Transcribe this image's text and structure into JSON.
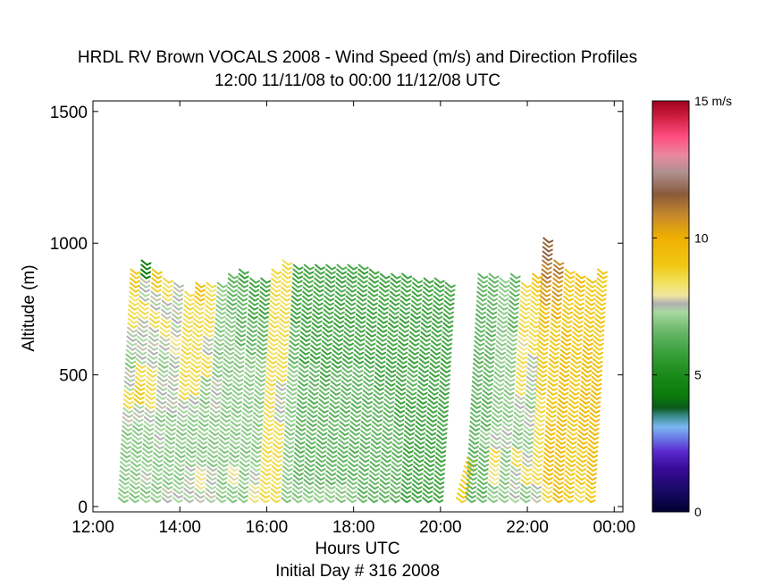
{
  "chart_data": {
    "type": "scatter",
    "title": "HRDL RV Brown VOCALS 2008 - Wind Speed (m/s) and Direction Profiles",
    "subtitle": "12:00 11/11/08 to 00:00 11/12/08  UTC",
    "xlabel": "Hours UTC",
    "xlabel2": "Initial Day # 316  2008",
    "ylabel": "Altitude (m)",
    "xlim": [
      12,
      24.2
    ],
    "ylim": [
      -20,
      1540
    ],
    "x_ticks": [
      12,
      14,
      16,
      18,
      20,
      22,
      24
    ],
    "x_tick_labels": [
      "12:00",
      "14:00",
      "16:00",
      "18:00",
      "20:00",
      "22:00",
      "00:00"
    ],
    "y_ticks": [
      0,
      500,
      1000,
      1500
    ],
    "y_tick_labels": [
      "0",
      "500",
      "1000",
      "1500"
    ],
    "grid": false,
    "profile_spacing_hours": 0.25,
    "barb_spacing_m": 17,
    "profiles": [
      {
        "hour": 12.67,
        "top": 890,
        "speeds": [
          7,
          7,
          7,
          7,
          7.5,
          8.5,
          7.5,
          7,
          7.5,
          8.5,
          8.5,
          9
        ]
      },
      {
        "hour": 12.92,
        "top": 935,
        "speeds": [
          7,
          7,
          7,
          7,
          7.5,
          9,
          8.5,
          7.5,
          7.5,
          8.5,
          7.5,
          4.5
        ]
      },
      {
        "hour": 13.17,
        "top": 890,
        "speeds": [
          7,
          7.5,
          7,
          7,
          7.5,
          8.5,
          8.5,
          7.5,
          7.5,
          8.5,
          7.5,
          9
        ]
      },
      {
        "hour": 13.42,
        "top": 855,
        "speeds": [
          7,
          7,
          7,
          7.5,
          7,
          7.5,
          7.5,
          7,
          7.5,
          8.5,
          7.5,
          8.5
        ]
      },
      {
        "hour": 13.67,
        "top": 850,
        "speeds": [
          7.5,
          7,
          7,
          7,
          7,
          7.5,
          7.5,
          7.5,
          8,
          7.5,
          7.5,
          7.5
        ]
      },
      {
        "hour": 13.92,
        "top": 815,
        "speeds": [
          7.5,
          7,
          7,
          7,
          7,
          7.5,
          8.5,
          8.5,
          8.5,
          8.5,
          8.5,
          8.5
        ]
      },
      {
        "hour": 14.17,
        "top": 850,
        "speeds": [
          7.5,
          7.5,
          7,
          7,
          7,
          7.5,
          8.5,
          8.5,
          8.5,
          8.5,
          8.5,
          9.5
        ]
      },
      {
        "hour": 14.42,
        "top": 850,
        "speeds": [
          7.5,
          8,
          7,
          7,
          7,
          7,
          7,
          8.5,
          7.5,
          8.5,
          8.5,
          8.5
        ]
      },
      {
        "hour": 14.67,
        "top": 840,
        "speeds": [
          7.5,
          7.5,
          7,
          7,
          7,
          7.5,
          7.5,
          7,
          7,
          7,
          7,
          7
        ]
      },
      {
        "hour": 14.92,
        "top": 870,
        "speeds": [
          7,
          7,
          7,
          7,
          7,
          7,
          7,
          7,
          7,
          7,
          6.5,
          6.5
        ]
      },
      {
        "hour": 15.17,
        "top": 900,
        "speeds": [
          7,
          8,
          7,
          7,
          7,
          7,
          7,
          7,
          6.5,
          6.5,
          6.5,
          6
        ]
      },
      {
        "hour": 15.42,
        "top": 860,
        "speeds": [
          7,
          7,
          7,
          7,
          7,
          7,
          7,
          7,
          6.5,
          6.5,
          6,
          6
        ]
      },
      {
        "hour": 15.67,
        "top": 860,
        "speeds": [
          8,
          7.5,
          7,
          7,
          7,
          7,
          7,
          7,
          6.5,
          6.5,
          6,
          6
        ]
      },
      {
        "hour": 15.92,
        "top": 900,
        "speeds": [
          8.5,
          8.5,
          8.5,
          8.5,
          8.5,
          8.5,
          8.5,
          8.5,
          8.5,
          8.5,
          8.5,
          8.5
        ]
      },
      {
        "hour": 16.17,
        "top": 930,
        "speeds": [
          8.5,
          8.5,
          8.5,
          8.5,
          7.5,
          7.5,
          8.5,
          8.5,
          8.5,
          8.5,
          8.5,
          8.5
        ]
      },
      {
        "hour": 16.42,
        "top": 920,
        "speeds": [
          7,
          7,
          7,
          7,
          7,
          7,
          7,
          6.5,
          6.5,
          6,
          6,
          6
        ]
      },
      {
        "hour": 16.67,
        "top": 920,
        "speeds": [
          7,
          6.5,
          6.5,
          6.5,
          6.5,
          6.5,
          6.5,
          6,
          6,
          6,
          6,
          6
        ]
      },
      {
        "hour": 16.92,
        "top": 915,
        "speeds": [
          7,
          6.5,
          6.5,
          6.5,
          6.5,
          6.5,
          6.5,
          6,
          6,
          6,
          6,
          6
        ]
      },
      {
        "hour": 17.17,
        "top": 910,
        "speeds": [
          7,
          6.5,
          6.5,
          6.5,
          6.5,
          6.5,
          6,
          6,
          6,
          6,
          6,
          6
        ]
      },
      {
        "hour": 17.42,
        "top": 905,
        "speeds": [
          7,
          6.5,
          6.5,
          6.5,
          6.5,
          6.5,
          6.5,
          6,
          6,
          6,
          6,
          6
        ]
      },
      {
        "hour": 17.67,
        "top": 915,
        "speeds": [
          7,
          6.5,
          6.5,
          6.5,
          6.5,
          6.5,
          6.5,
          6,
          6,
          6,
          6,
          6
        ]
      },
      {
        "hour": 17.92,
        "top": 910,
        "speeds": [
          7,
          6.5,
          6.5,
          6.5,
          6.5,
          6.5,
          6.5,
          6,
          6,
          6,
          6,
          6
        ]
      },
      {
        "hour": 18.17,
        "top": 900,
        "speeds": [
          6.5,
          6.5,
          6.5,
          6.5,
          6.5,
          6.5,
          6.5,
          6,
          6,
          6,
          6,
          6
        ]
      },
      {
        "hour": 18.42,
        "top": 885,
        "speeds": [
          6.5,
          6.5,
          6.5,
          6.5,
          6.5,
          6.5,
          6,
          6,
          6,
          6,
          6,
          6
        ]
      },
      {
        "hour": 18.67,
        "top": 880,
        "speeds": [
          6.5,
          6.5,
          6.5,
          6.5,
          6.5,
          6.5,
          6,
          6,
          6,
          6,
          6,
          6
        ]
      },
      {
        "hour": 18.92,
        "top": 885,
        "speeds": [
          6.5,
          6.5,
          6.5,
          6.5,
          6,
          6,
          6,
          6,
          6,
          6,
          6,
          6
        ]
      },
      {
        "hour": 19.17,
        "top": 865,
        "speeds": [
          6,
          6,
          6,
          6,
          6,
          6,
          6.5,
          6,
          6,
          6,
          6,
          6
        ]
      },
      {
        "hour": 19.42,
        "top": 855,
        "speeds": [
          6,
          6,
          6,
          6,
          6,
          6,
          6,
          6,
          6,
          6,
          6,
          6
        ]
      },
      {
        "hour": 19.67,
        "top": 855,
        "speeds": [
          6,
          6,
          6,
          6,
          6,
          6,
          6,
          6,
          6,
          6,
          6,
          6
        ]
      },
      {
        "hour": 19.92,
        "top": 850,
        "speeds": [
          6,
          6,
          6,
          6,
          6,
          6,
          6,
          6,
          6,
          6,
          6,
          6
        ]
      },
      {
        "hour": 20.42,
        "top": 180,
        "speeds": [
          9,
          9,
          9,
          9
        ]
      },
      {
        "hour": 20.67,
        "top": 870,
        "speeds": [
          6.5,
          6.5,
          6.5,
          6.5,
          6.5,
          6.5,
          6.5,
          6.5,
          6.5,
          6.5,
          6.5,
          6.5
        ]
      },
      {
        "hour": 20.92,
        "top": 870,
        "speeds": [
          6.5,
          6.5,
          6.5,
          7,
          6.5,
          6.5,
          6.5,
          6.5,
          6.5,
          6.5,
          6.5,
          6.5
        ]
      },
      {
        "hour": 21.17,
        "top": 860,
        "speeds": [
          7,
          8,
          8.5,
          7.5,
          7,
          7,
          7,
          7,
          7,
          7,
          7,
          7
        ]
      },
      {
        "hour": 21.42,
        "top": 880,
        "speeds": [
          7,
          7,
          7,
          7.5,
          7,
          7,
          7,
          7,
          7,
          6.5,
          6.5,
          6.5
        ]
      },
      {
        "hour": 21.67,
        "top": 850,
        "speeds": [
          7.5,
          7.5,
          8.5,
          7,
          7,
          7.5,
          8.5,
          8.5,
          8,
          8.5,
          8.5,
          8.5
        ]
      },
      {
        "hour": 21.92,
        "top": 870,
        "speeds": [
          7,
          8.5,
          7.5,
          7,
          7.5,
          7,
          7.5,
          7.5,
          8.5,
          8.5,
          8.5,
          9
        ]
      },
      {
        "hour": 22.17,
        "top": 1010,
        "speeds": [
          7.5,
          8.5,
          8.5,
          8.5,
          8.5,
          9,
          9,
          9,
          9.5,
          10.5,
          11,
          11.5
        ]
      },
      {
        "hour": 22.42,
        "top": 935,
        "speeds": [
          8.5,
          9.5,
          9.5,
          9.5,
          9,
          9,
          9,
          9,
          9,
          10,
          10.5,
          11
        ]
      },
      {
        "hour": 22.67,
        "top": 895,
        "speeds": [
          9.5,
          9.5,
          9.5,
          9.5,
          9.5,
          9.5,
          9.5,
          9.5,
          9.5,
          9,
          9,
          9
        ]
      },
      {
        "hour": 22.92,
        "top": 880,
        "speeds": [
          9,
          9,
          9,
          9,
          9,
          9,
          9,
          9,
          9,
          9,
          9,
          9.5
        ]
      },
      {
        "hour": 23.17,
        "top": 860,
        "speeds": [
          8.5,
          9,
          9,
          9.5,
          9.5,
          9.5,
          9.5,
          9.5,
          9.5,
          9,
          9,
          9
        ]
      },
      {
        "hour": 23.42,
        "top": 890,
        "speeds": [
          9,
          9.5,
          9.5,
          9.5,
          9.5,
          9.5,
          9.5,
          9,
          9,
          9,
          9,
          9
        ]
      }
    ],
    "colorbar": {
      "label": "15 m/s",
      "tick_values": [
        0,
        5,
        10,
        15
      ],
      "tick_labels": [
        "0",
        "5",
        "10",
        "15 m/s"
      ],
      "range": [
        0,
        15
      ],
      "stops": [
        {
          "v": 0.0,
          "c": "#000033"
        },
        {
          "v": 0.8,
          "c": "#1a0a66"
        },
        {
          "v": 1.6,
          "c": "#3a0a99"
        },
        {
          "v": 2.2,
          "c": "#5a2ad0"
        },
        {
          "v": 2.7,
          "c": "#6a7ae8"
        },
        {
          "v": 3.1,
          "c": "#7ab8f0"
        },
        {
          "v": 3.5,
          "c": "#3a8a8a"
        },
        {
          "v": 3.8,
          "c": "#0a5a1a"
        },
        {
          "v": 4.2,
          "c": "#0a7a0a"
        },
        {
          "v": 5.0,
          "c": "#1a8a1a"
        },
        {
          "v": 5.8,
          "c": "#3aa03a"
        },
        {
          "v": 6.6,
          "c": "#6ab86a"
        },
        {
          "v": 7.3,
          "c": "#a8d8a0"
        },
        {
          "v": 7.6,
          "c": "#b0b0b0"
        },
        {
          "v": 7.9,
          "c": "#f0e6a0"
        },
        {
          "v": 8.4,
          "c": "#f2e05a"
        },
        {
          "v": 9.0,
          "c": "#f0c814"
        },
        {
          "v": 10.0,
          "c": "#f0b000"
        },
        {
          "v": 10.8,
          "c": "#c88a2a"
        },
        {
          "v": 11.6,
          "c": "#8a5a3a"
        },
        {
          "v": 12.4,
          "c": "#b09090"
        },
        {
          "v": 13.0,
          "c": "#e88aa0"
        },
        {
          "v": 13.7,
          "c": "#ff4d80"
        },
        {
          "v": 14.4,
          "c": "#d02040"
        },
        {
          "v": 15.0,
          "c": "#a00020"
        }
      ]
    }
  }
}
